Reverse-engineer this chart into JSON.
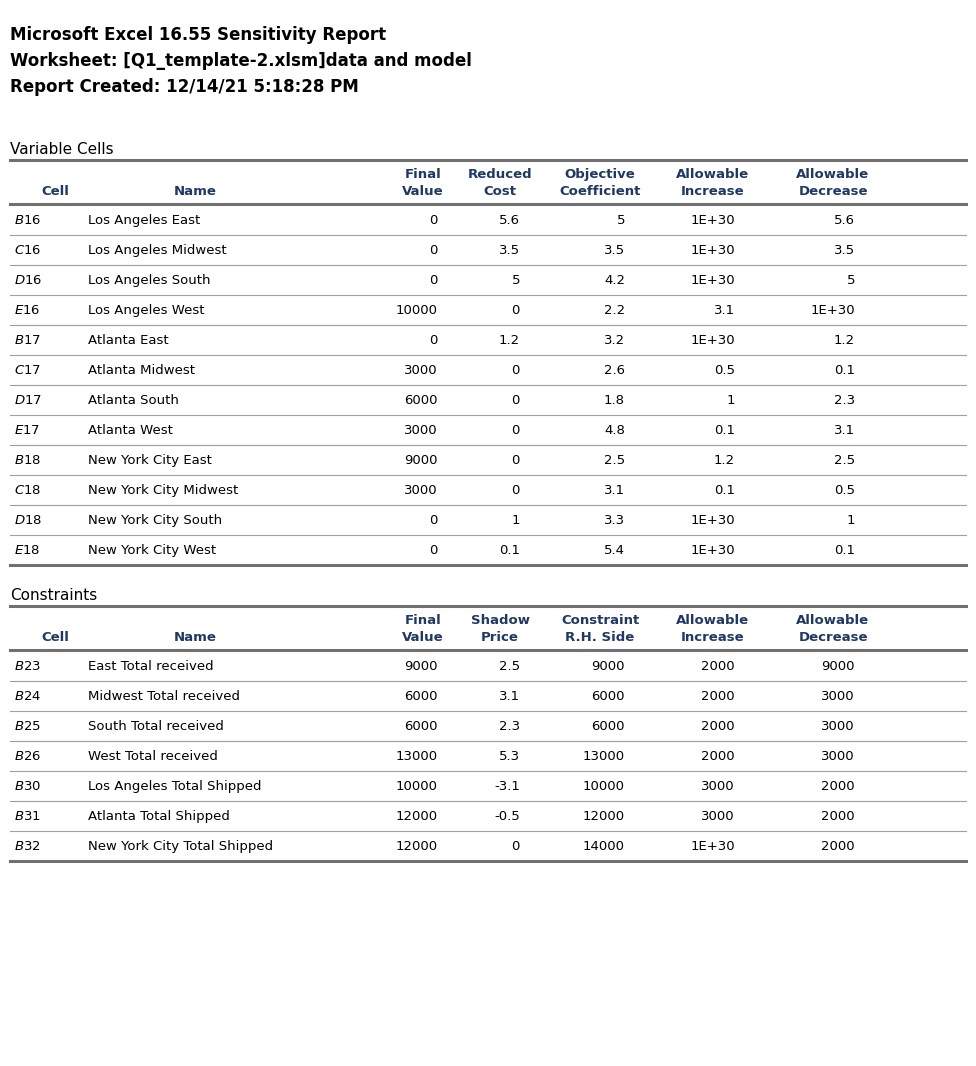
{
  "header_lines": [
    "Microsoft Excel 16.55 Sensitivity Report",
    "Worksheet: [Q1_template-2.xlsm]data and model",
    "Report Created: 12/14/21 5:18:28 PM"
  ],
  "section1_title": "Variable Cells",
  "var_col_headers_line1": [
    "",
    "",
    "Final",
    "Reduced",
    "Objective",
    "Allowable",
    "Allowable"
  ],
  "var_col_headers_line2": [
    "Cell",
    "Name",
    "Value",
    "Cost",
    "Coefficient",
    "Increase",
    "Decrease"
  ],
  "var_rows": [
    [
      "$B$16",
      "Los Angeles East",
      "0",
      "5.6",
      "5",
      "1E+30",
      "5.6"
    ],
    [
      "$C$16",
      "Los Angeles Midwest",
      "0",
      "3.5",
      "3.5",
      "1E+30",
      "3.5"
    ],
    [
      "$D$16",
      "Los Angeles South",
      "0",
      "5",
      "4.2",
      "1E+30",
      "5"
    ],
    [
      "$E$16",
      "Los Angeles West",
      "10000",
      "0",
      "2.2",
      "3.1",
      "1E+30"
    ],
    [
      "$B$17",
      "Atlanta East",
      "0",
      "1.2",
      "3.2",
      "1E+30",
      "1.2"
    ],
    [
      "$C$17",
      "Atlanta Midwest",
      "3000",
      "0",
      "2.6",
      "0.5",
      "0.1"
    ],
    [
      "$D$17",
      "Atlanta South",
      "6000",
      "0",
      "1.8",
      "1",
      "2.3"
    ],
    [
      "$E$17",
      "Atlanta West",
      "3000",
      "0",
      "4.8",
      "0.1",
      "3.1"
    ],
    [
      "$B$18",
      "New York City East",
      "9000",
      "0",
      "2.5",
      "1.2",
      "2.5"
    ],
    [
      "$C$18",
      "New York City Midwest",
      "3000",
      "0",
      "3.1",
      "0.1",
      "0.5"
    ],
    [
      "$D$18",
      "New York City South",
      "0",
      "1",
      "3.3",
      "1E+30",
      "1"
    ],
    [
      "$E$18",
      "New York City West",
      "0",
      "0.1",
      "5.4",
      "1E+30",
      "0.1"
    ]
  ],
  "section2_title": "Constraints",
  "con_col_headers_line1": [
    "",
    "",
    "Final",
    "Shadow",
    "Constraint",
    "Allowable",
    "Allowable"
  ],
  "con_col_headers_line2": [
    "Cell",
    "Name",
    "Value",
    "Price",
    "R.H. Side",
    "Increase",
    "Decrease"
  ],
  "con_rows": [
    [
      "$B$23",
      "East Total received",
      "9000",
      "2.5",
      "9000",
      "2000",
      "9000"
    ],
    [
      "$B$24",
      "Midwest Total received",
      "6000",
      "3.1",
      "6000",
      "2000",
      "3000"
    ],
    [
      "$B$25",
      "South Total received",
      "6000",
      "2.3",
      "6000",
      "2000",
      "3000"
    ],
    [
      "$B$26",
      "West Total received",
      "13000",
      "5.3",
      "13000",
      "2000",
      "3000"
    ],
    [
      "$B$30",
      "Los Angeles Total Shipped",
      "10000",
      "-3.1",
      "10000",
      "3000",
      "2000"
    ],
    [
      "$B$31",
      "Atlanta Total Shipped",
      "12000",
      "-0.5",
      "12000",
      "3000",
      "2000"
    ],
    [
      "$B$32",
      "New York City Total Shipped",
      "12000",
      "0",
      "14000",
      "1E+30",
      "2000"
    ]
  ],
  "header_bold_color": "#000000",
  "col_header_color": "#1F3864",
  "data_color": "#000000",
  "background_color": "#FFFFFF",
  "fig_width": 9.76,
  "fig_height": 10.66
}
